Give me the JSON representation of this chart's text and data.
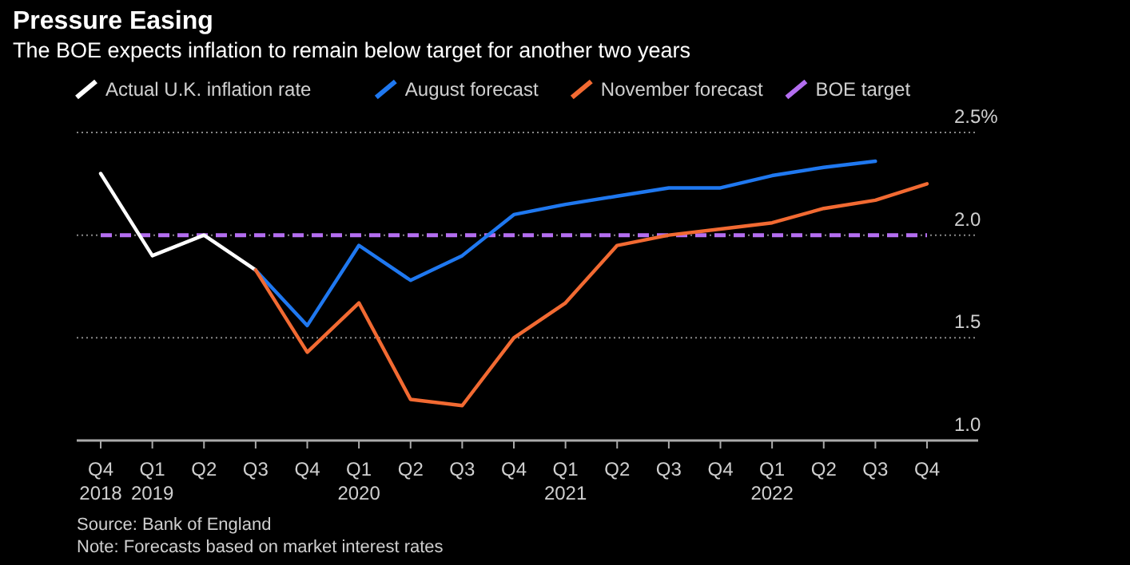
{
  "chart_data": {
    "type": "line",
    "title": "Pressure Easing",
    "subtitle": "The BOE expects inflation to remain below target for another two years",
    "categories": [
      "Q4\n2018",
      "Q1\n2019",
      "Q2",
      "Q3",
      "Q4",
      "Q1\n2020",
      "Q2",
      "Q3",
      "Q4",
      "Q1\n2021",
      "Q2",
      "Q3",
      "Q4",
      "Q1\n2022",
      "Q2",
      "Q3",
      "Q4"
    ],
    "series": [
      {
        "name": "Actual U.K. inflation rate",
        "color": "#ffffff",
        "values": [
          2.3,
          1.9,
          2.0,
          1.83,
          null,
          null,
          null,
          null,
          null,
          null,
          null,
          null,
          null,
          null,
          null,
          null,
          null
        ]
      },
      {
        "name": "August forecast",
        "color": "#1f78f0",
        "values": [
          null,
          null,
          null,
          1.83,
          1.56,
          1.95,
          1.78,
          1.9,
          2.1,
          2.15,
          2.19,
          2.23,
          2.23,
          2.29,
          2.33,
          2.36,
          null
        ]
      },
      {
        "name": "November forecast",
        "color": "#f26a32",
        "values": [
          null,
          null,
          null,
          1.83,
          1.43,
          1.67,
          1.2,
          1.17,
          1.5,
          1.67,
          1.95,
          2.0,
          2.03,
          2.06,
          2.13,
          2.17,
          2.25
        ]
      }
    ],
    "ref_lines": [
      {
        "axis": "y",
        "value": 2.0,
        "label": "BOE target",
        "color": "#b46ef0",
        "line_style": "dashed"
      }
    ],
    "ylim": [
      1.0,
      2.5
    ],
    "yticks": [
      {
        "value": 1,
        "label": "1.0"
      },
      1.5,
      {
        "value": 2,
        "label": "2.0"
      },
      {
        "value": 2.5,
        "label": "2.5%"
      }
    ],
    "grid": "y",
    "legend": "top left",
    "marker": "none",
    "line_style": "solid",
    "annotations": [
      "Source: Bank of England",
      "Note: Forecasts based on market interest rates"
    ]
  }
}
